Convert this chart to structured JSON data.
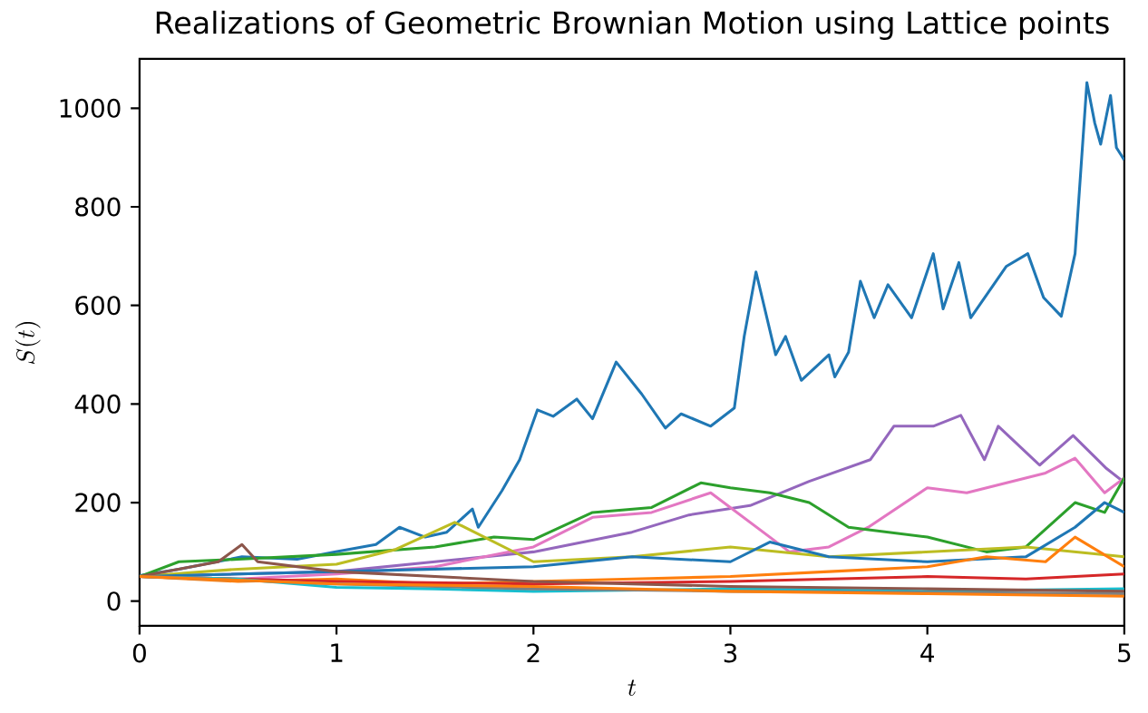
{
  "chart_data": {
    "type": "line",
    "title": "Realizations of Geometric Brownian Motion using Lattice points",
    "xlabel": "t",
    "ylabel": "S(t)",
    "xlim": [
      0,
      5
    ],
    "ylim": [
      -50,
      1100
    ],
    "xticks": [
      0,
      1,
      2,
      3,
      4,
      5
    ],
    "yticks": [
      0,
      200,
      400,
      600,
      800,
      1000
    ],
    "series": [
      {
        "color": "#1f77b4",
        "x": [
          0,
          0.2,
          0.52,
          0.8,
          0.99,
          1.2,
          1.32,
          1.45,
          1.56,
          1.69,
          1.72,
          1.84,
          1.93,
          2.02,
          2.1,
          2.22,
          2.3,
          2.42,
          2.55,
          2.67,
          2.75,
          2.9,
          3.02,
          3.07,
          3.13,
          3.23,
          3.28,
          3.36,
          3.5,
          3.53,
          3.6,
          3.66,
          3.73,
          3.8,
          3.92,
          4.03,
          4.08,
          4.16,
          4.22,
          4.4,
          4.51,
          4.59,
          4.68,
          4.75,
          4.81,
          4.85,
          4.88,
          4.93,
          4.96,
          5.0
        ],
        "values": [
          52,
          65,
          90,
          85,
          100,
          115,
          150,
          130,
          140,
          187,
          150,
          224,
          287,
          388,
          375,
          410,
          370,
          485,
          420,
          351,
          380,
          355,
          392,
          537,
          668,
          500,
          537,
          448,
          500,
          455,
          505,
          649,
          575,
          642,
          575,
          705,
          593,
          687,
          575,
          679,
          705,
          616,
          578,
          705,
          1052,
          970,
          927,
          1026,
          920,
          895
        ]
      },
      {
        "color": "#9467bd",
        "x": [
          0,
          0.5,
          1,
          1.5,
          2,
          2.5,
          2.79,
          3.1,
          3.4,
          3.71,
          3.83,
          4.03,
          4.17,
          4.29,
          4.36,
          4.57,
          4.74,
          4.91,
          5.0
        ],
        "values": [
          50,
          55,
          60,
          80,
          100,
          140,
          175,
          194,
          243,
          287,
          355,
          355,
          377,
          287,
          355,
          276,
          336,
          269,
          241
        ]
      },
      {
        "color": "#e377c2",
        "x": [
          0,
          0.5,
          1,
          1.5,
          2,
          2.3,
          2.6,
          2.9,
          3.1,
          3.3,
          3.5,
          3.7,
          4.0,
          4.2,
          4.4,
          4.6,
          4.75,
          4.9,
          5.0
        ],
        "values": [
          50,
          45,
          55,
          70,
          110,
          170,
          180,
          220,
          160,
          100,
          110,
          150,
          230,
          220,
          240,
          260,
          290,
          220,
          250
        ]
      },
      {
        "color": "#2ca02c",
        "x": [
          0,
          0.2,
          0.5,
          1,
          1.5,
          1.8,
          2.0,
          2.3,
          2.6,
          2.85,
          3.0,
          3.2,
          3.4,
          3.6,
          3.8,
          4.0,
          4.3,
          4.5,
          4.75,
          4.9,
          5.0
        ],
        "values": [
          50,
          80,
          85,
          95,
          110,
          130,
          125,
          180,
          190,
          240,
          230,
          220,
          200,
          150,
          140,
          130,
          100,
          110,
          200,
          180,
          250
        ]
      },
      {
        "color": "#bcbd22",
        "x": [
          0,
          0.5,
          1,
          1.3,
          1.6,
          1.8,
          2.0,
          2.5,
          3.0,
          3.5,
          4.0,
          4.5,
          5.0
        ],
        "values": [
          50,
          65,
          75,
          105,
          160,
          120,
          80,
          90,
          110,
          90,
          100,
          110,
          90
        ]
      },
      {
        "color": "#1f77b4",
        "x": [
          0,
          1,
          2,
          2.5,
          3,
          3.2,
          3.5,
          4,
          4.5,
          4.75,
          4.9,
          5.0
        ],
        "values": [
          50,
          60,
          70,
          90,
          80,
          120,
          90,
          80,
          90,
          150,
          200,
          180
        ]
      },
      {
        "color": "#ff7f0e",
        "x": [
          0,
          0.5,
          1,
          1.5,
          2,
          2.5,
          3,
          3.5,
          4,
          4.3,
          4.6,
          4.75,
          5
        ],
        "values": [
          50,
          40,
          45,
          35,
          40,
          45,
          50,
          60,
          70,
          90,
          80,
          130,
          70
        ]
      },
      {
        "color": "#d62728",
        "x": [
          0,
          1,
          2,
          3,
          4,
          4.5,
          5
        ],
        "values": [
          50,
          40,
          35,
          40,
          50,
          45,
          55
        ]
      },
      {
        "color": "#17becf",
        "x": [
          0,
          0.5,
          1,
          1.5,
          2,
          3,
          4,
          5
        ],
        "values": [
          50,
          45,
          28,
          25,
          20,
          25,
          20,
          25
        ]
      },
      {
        "color": "#8c564b",
        "x": [
          0,
          0.4,
          0.52,
          0.6,
          1,
          2,
          3,
          4,
          5
        ],
        "values": [
          50,
          80,
          115,
          80,
          60,
          40,
          30,
          25,
          20
        ]
      },
      {
        "color": "#7f7f7f",
        "x": [
          0,
          1,
          2,
          3,
          4,
          5
        ],
        "values": [
          50,
          35,
          25,
          20,
          18,
          15
        ]
      },
      {
        "color": "#ff7f0e",
        "x": [
          0,
          1,
          2,
          3,
          4,
          5
        ],
        "values": [
          50,
          35,
          30,
          20,
          15,
          10
        ]
      }
    ]
  }
}
